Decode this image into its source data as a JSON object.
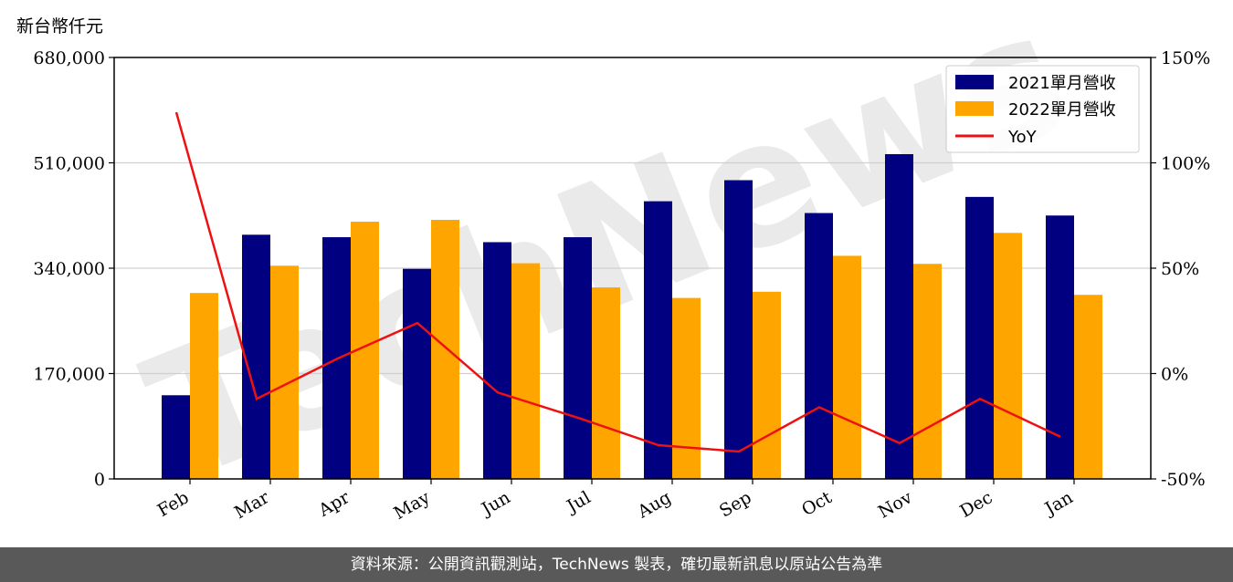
{
  "unit_label": "新台幣仟元",
  "footer_text": "資料來源：公開資訊觀測站，TechNews 製表，確切最新訊息以原站公告為準",
  "watermark_text": "TechNews",
  "colors": {
    "bar_2021": "#000080",
    "bar_2022": "#FFA500",
    "yoy_line": "#EE1111",
    "grid": "#d0d0d0",
    "footer_bg": "#595959"
  },
  "chart_data": {
    "type": "bar",
    "categories": [
      "Feb",
      "Mar",
      "Apr",
      "May",
      "Jun",
      "Jul",
      "Aug",
      "Sep",
      "Oct",
      "Nov",
      "Dec",
      "Jan"
    ],
    "series": [
      {
        "name": "2021單月營收",
        "axis": "left",
        "values": [
          135000,
          394000,
          390000,
          339000,
          382000,
          390000,
          448000,
          482000,
          429000,
          524000,
          455000,
          425000
        ]
      },
      {
        "name": "2022單月營收",
        "axis": "left",
        "values": [
          300000,
          344000,
          415000,
          418000,
          348000,
          309000,
          292000,
          302000,
          360000,
          347000,
          397000,
          297000
        ]
      },
      {
        "name": "YoY",
        "type": "line",
        "axis": "right",
        "unit": "%",
        "values": [
          124,
          -12,
          7,
          24,
          -9,
          -21,
          -34,
          -37,
          -16,
          -33,
          -12,
          -30
        ]
      }
    ],
    "y_left": {
      "ylim": [
        0,
        680000
      ],
      "ticks": [
        0,
        170000,
        340000,
        510000,
        680000
      ],
      "tick_labels": [
        "0",
        "170,000",
        "340,000",
        "510,000",
        "680,000"
      ]
    },
    "y_right": {
      "ylim": [
        -50,
        150
      ],
      "ticks": [
        -50,
        0,
        50,
        100,
        150
      ],
      "tick_labels": [
        "-50%",
        "0%",
        "50%",
        "100%",
        "150%"
      ]
    },
    "grid": true,
    "legend_position": "top-right"
  }
}
